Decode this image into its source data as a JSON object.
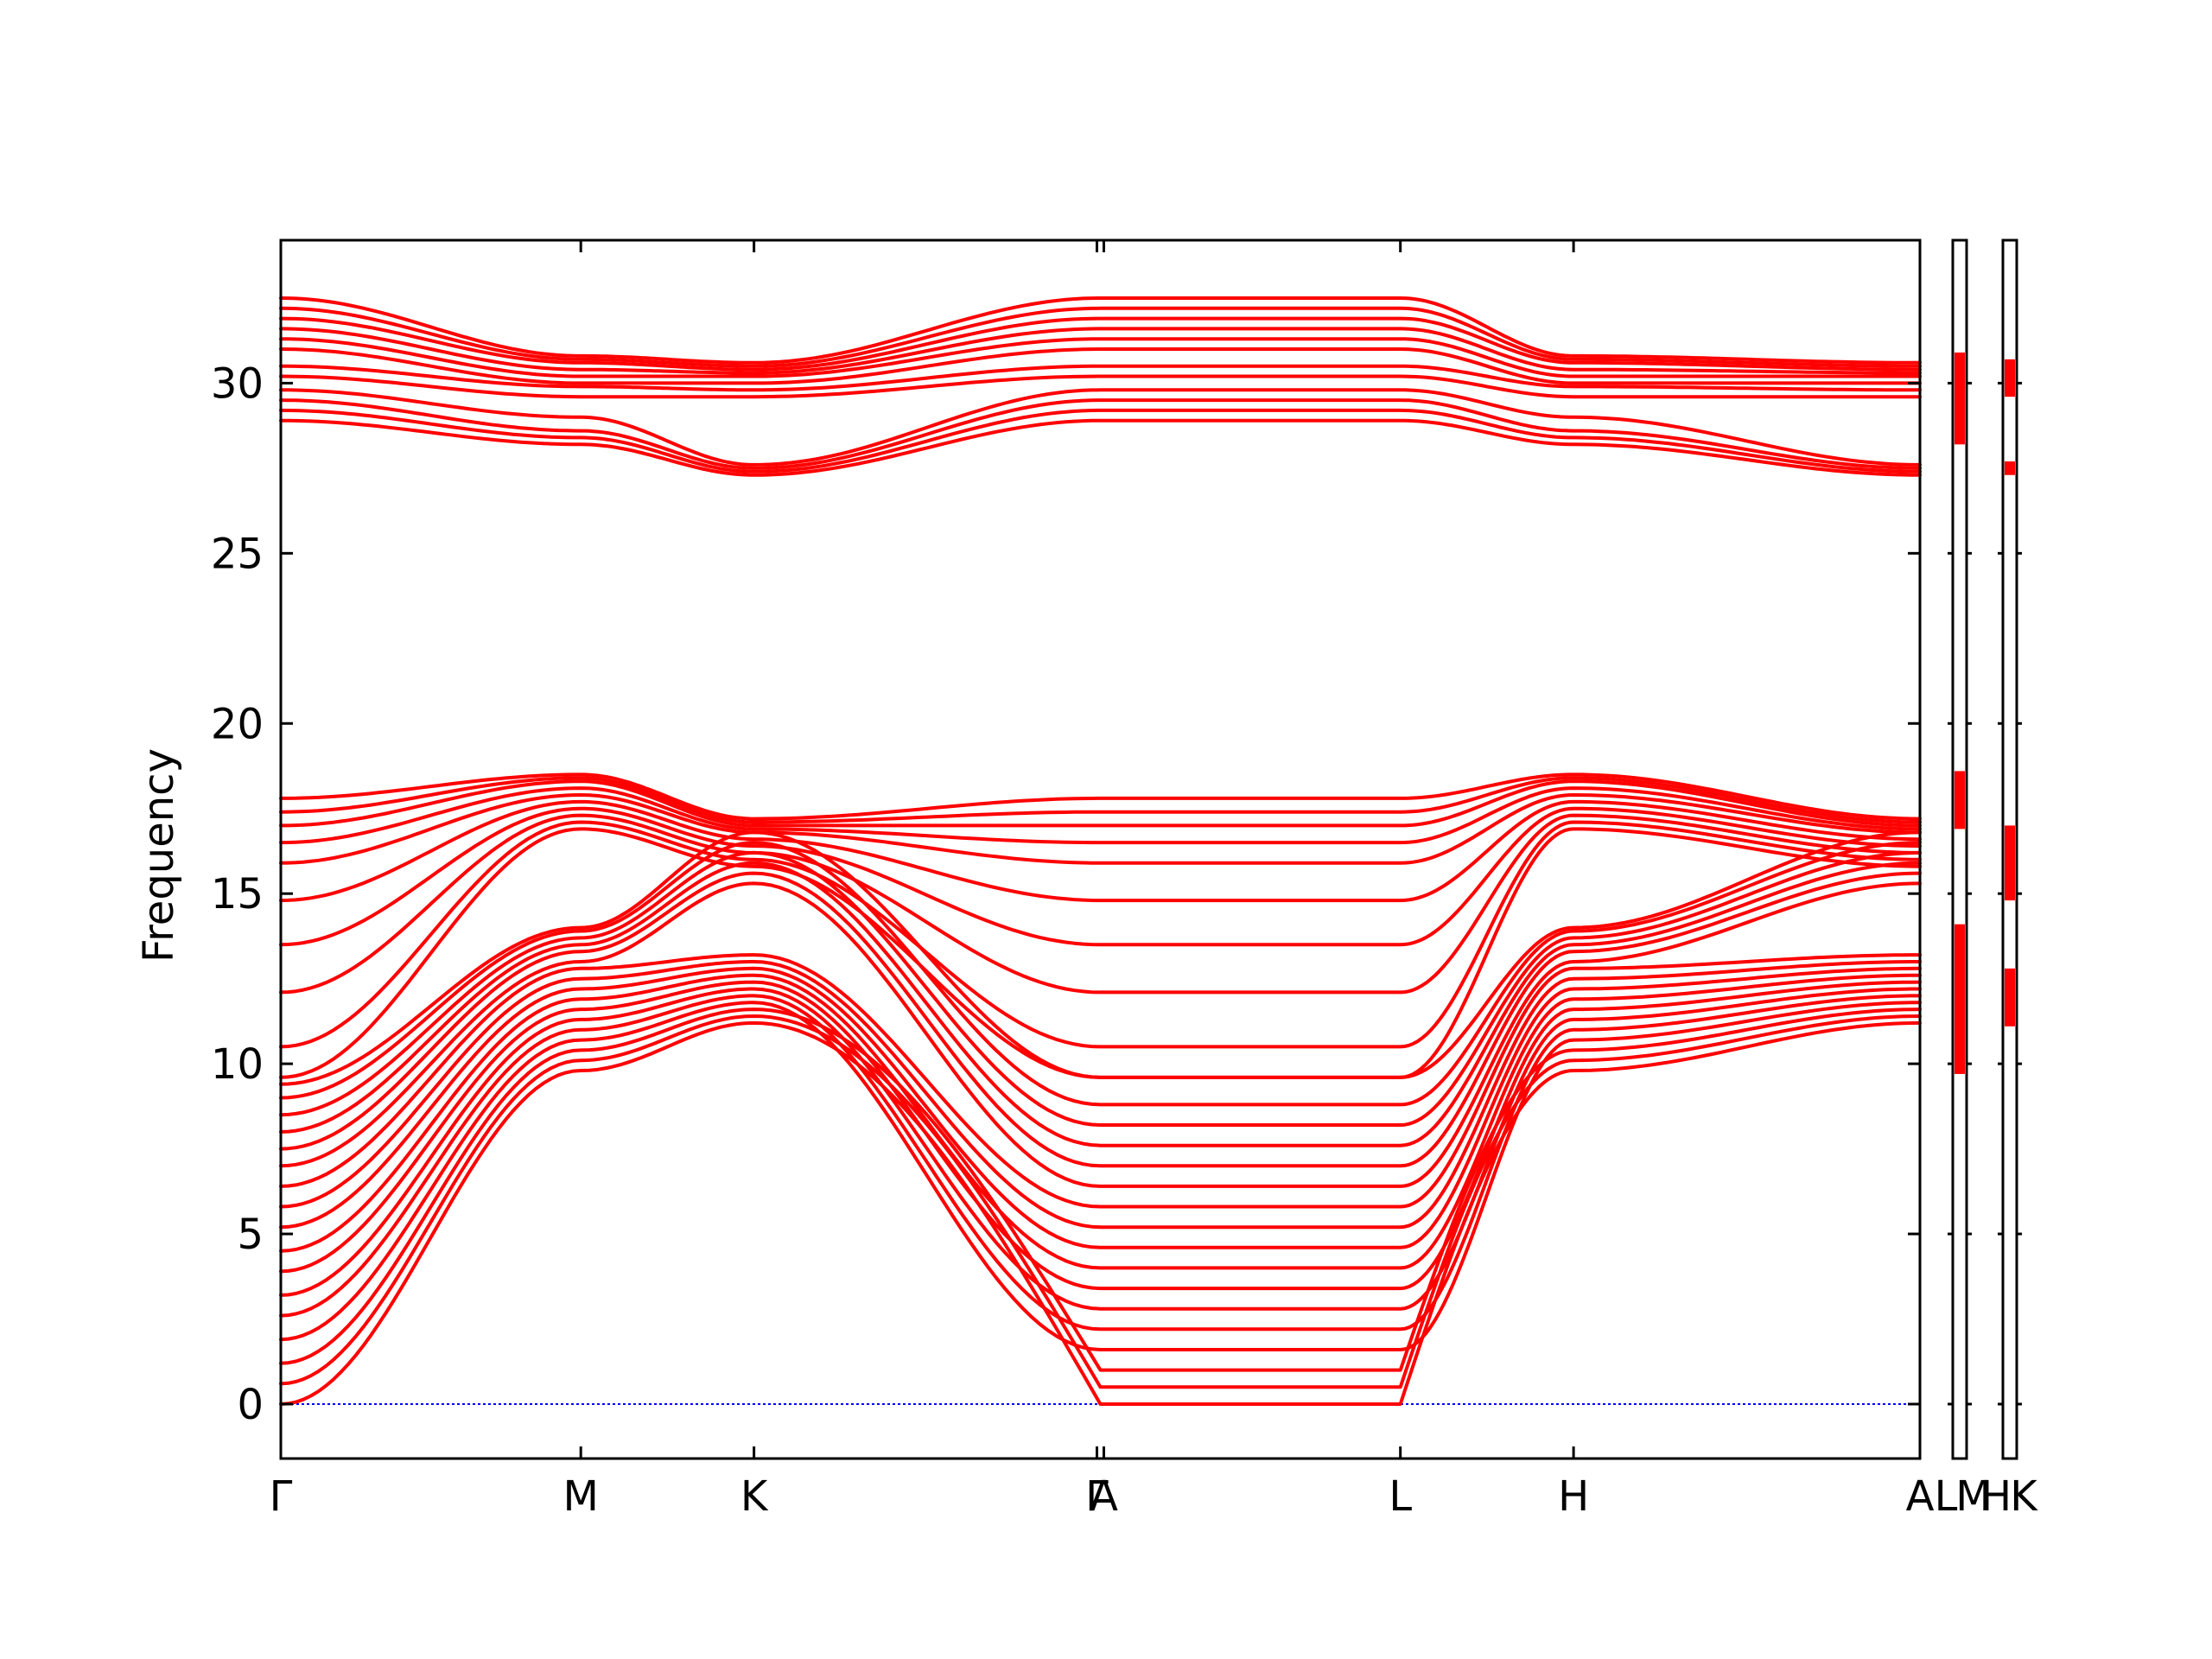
{
  "chart_data": {
    "type": "line",
    "ylabel": "Frequency",
    "ylim": [
      -1.6,
      34.2
    ],
    "yticks": [
      0,
      5,
      10,
      15,
      20,
      25,
      30
    ],
    "zero_line_color": "#0000ff",
    "band_color": "#ff0000",
    "grid": false,
    "path_segments": [
      {
        "labels": [
          "Γ",
          "M",
          "K",
          "Γ"
        ],
        "x": [
          0.0,
          0.5774,
          0.9107,
          1.5774
        ]
      },
      {
        "labels": [
          "A",
          "L",
          "H",
          "A"
        ],
        "x": [
          1.5774,
          2.1548,
          2.4881,
          3.1548
        ]
      },
      {
        "labels": [
          "L",
          "M"
        ],
        "x": [
          3.1548,
          3.2548
        ]
      },
      {
        "labels": [
          "H",
          "K"
        ],
        "x": [
          3.2548,
          3.3548
        ]
      }
    ],
    "x_tick_labels": [
      "Γ",
      "M",
      "K",
      "Γ",
      "A",
      "L",
      "H",
      "A",
      "L",
      "M",
      "H",
      "K"
    ],
    "band_groups": [
      {
        "name": "acoustic_low",
        "values_at": {
          "Γ": [
            0.0,
            0.6,
            1.2,
            1.9,
            2.6,
            3.2,
            3.9,
            4.5,
            5.2,
            5.8,
            6.4,
            7.0,
            7.5,
            8.0,
            8.5,
            9.0,
            9.4
          ],
          "M": [
            9.8,
            10.1,
            10.4,
            10.7,
            11.0,
            11.3,
            11.6,
            11.9,
            12.2,
            12.5,
            12.8,
            13.0,
            13.3,
            13.5,
            13.7,
            13.9,
            14.0
          ],
          "K": [
            11.2,
            11.4,
            11.6,
            11.8,
            12.0,
            12.2,
            12.4,
            12.6,
            12.8,
            13.0,
            13.2,
            15.3,
            15.6,
            15.9,
            16.2,
            16.5,
            16.8
          ],
          "A": [
            0.0,
            0.5,
            1.0,
            1.6,
            2.2,
            2.8,
            3.4,
            4.0,
            4.6,
            5.2,
            5.8,
            6.4,
            7.0,
            7.6,
            8.2,
            8.8,
            9.6
          ]
        }
      },
      {
        "name": "optical_middle",
        "values_at": {
          "Γ": [
            9.6,
            10.5,
            12.1,
            13.5,
            14.8,
            15.9,
            16.5,
            17.0,
            17.4,
            17.8
          ],
          "M": [
            16.9,
            17.1,
            17.3,
            17.5,
            17.7,
            17.9,
            18.1,
            18.3,
            18.4,
            18.5
          ],
          "K": [
            15.8,
            16.0,
            16.2,
            16.4,
            16.6,
            16.8,
            16.9,
            17.0,
            17.1,
            17.2
          ],
          "A": [
            9.6,
            10.5,
            12.1,
            13.5,
            14.8,
            15.9,
            16.5,
            17.0,
            17.4,
            17.8
          ]
        }
      },
      {
        "name": "optical_high",
        "values_at": {
          "Γ": [
            28.9,
            29.2,
            29.5,
            29.8,
            30.2,
            30.5,
            31.0,
            31.3,
            31.6,
            31.9,
            32.2,
            32.5
          ],
          "M": [
            28.2,
            28.4,
            28.6,
            29.0,
            29.6,
            29.9,
            30.0,
            30.2,
            30.4,
            30.6,
            30.7,
            30.8
          ],
          "K": [
            27.3,
            27.4,
            27.5,
            27.6,
            29.6,
            29.8,
            30.0,
            30.2,
            30.3,
            30.4,
            30.5,
            30.6
          ],
          "A": [
            28.9,
            29.2,
            29.5,
            29.8,
            30.2,
            30.5,
            31.0,
            31.3,
            31.6,
            31.9,
            32.2,
            32.5
          ]
        }
      }
    ],
    "dos_panels": [
      {
        "labels": [
          "L",
          "M"
        ],
        "bands": [
          [
            9.7,
            14.1
          ],
          [
            16.9,
            18.6
          ],
          [
            28.2,
            30.9
          ]
        ]
      },
      {
        "labels": [
          "H",
          "K"
        ],
        "bands": [
          [
            11.1,
            12.8
          ],
          [
            14.8,
            17.0
          ],
          [
            27.3,
            27.7
          ],
          [
            29.6,
            30.7
          ]
        ]
      }
    ]
  }
}
